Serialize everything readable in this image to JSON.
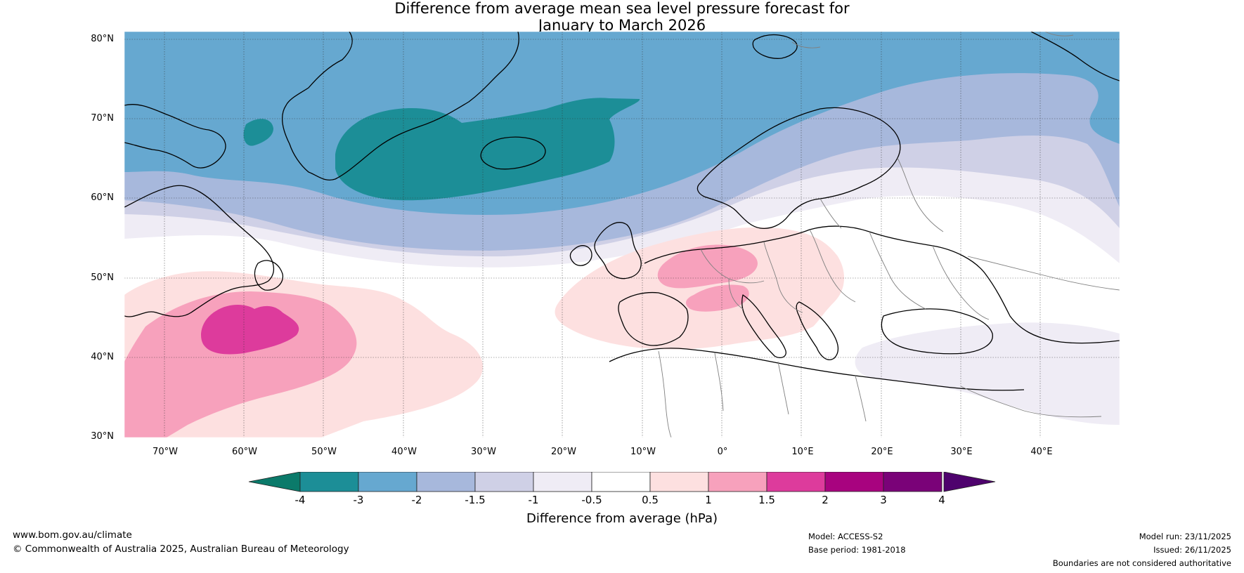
{
  "title": {
    "line1": "Difference from average mean sea level pressure forecast for",
    "line2": "January to March 2026"
  },
  "map": {
    "lat_labels": [
      "80°N",
      "70°N",
      "60°N",
      "50°N",
      "40°N",
      "30°N"
    ],
    "lon_labels": [
      "70°W",
      "60°W",
      "50°W",
      "40°W",
      "30°W",
      "20°W",
      "10°W",
      "0°",
      "10°E",
      "20°E",
      "30°E",
      "40°E"
    ],
    "extent": {
      "lon": [
        -75,
        50
      ],
      "lat": [
        30,
        81
      ]
    }
  },
  "colorbar": {
    "title": "Difference from average (hPa)",
    "ticks": [
      "-4",
      "-3",
      "-2",
      "-1.5",
      "-1",
      "-0.5",
      "0.5",
      "1",
      "1.5",
      "2",
      "3",
      "4"
    ],
    "colors": [
      "#0b7a6a",
      "#1c8e97",
      "#66a8d0",
      "#a7b8dc",
      "#cfd0e6",
      "#efecf5",
      "#ffffff",
      "#fde0e0",
      "#f7a1bc",
      "#dd3b9c",
      "#a8037f",
      "#7a0278",
      "#4e026d"
    ],
    "border_color": "#222222"
  },
  "footer": {
    "website": "www.bom.gov.au/climate",
    "copyright": "© Commonwealth of Australia 2025, Australian Bureau of Meteorology",
    "model": "Model: ACCESS-S2",
    "base_period": "Base period: 1981-2018",
    "model_run": "Model run: 23/11/2025",
    "issued": "Issued: 26/11/2025",
    "disclaimer": "Boundaries are not considered authoritative"
  }
}
